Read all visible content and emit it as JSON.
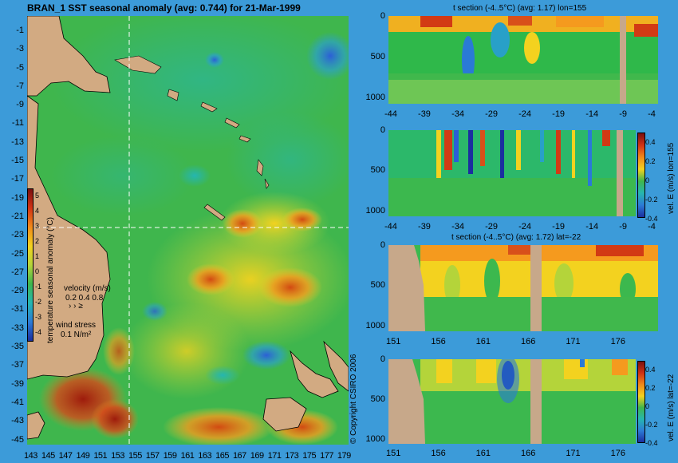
{
  "map": {
    "title": "BRAN_1 SST seasonal anomaly (avg: 0.744) for 21-Mar-1999",
    "lat_labels": [
      "-1",
      "-3",
      "-5",
      "-7",
      "-9",
      "-11",
      "-13",
      "-15",
      "-17",
      "-19",
      "-21",
      "-23",
      "-25",
      "-27",
      "-29",
      "-31",
      "-33",
      "-35",
      "-37",
      "-39",
      "-41",
      "-43",
      "-45"
    ],
    "lon_labels": [
      "143",
      "145",
      "147",
      "149",
      "151",
      "153",
      "155",
      "157",
      "159",
      "161",
      "163",
      "165",
      "167",
      "169",
      "171",
      "173",
      "175",
      "177",
      "179"
    ],
    "colorbar": {
      "ticks": [
        "5",
        "4",
        "3",
        "2",
        "1",
        "0",
        "-1",
        "-2",
        "-3",
        "-4"
      ],
      "label": "temperature seasonal anomaly (°C)"
    },
    "velocity_legend": {
      "title": "velocity (m/s)",
      "values": "0.2 0.4 0.8"
    },
    "wind_legend": {
      "title": "wind stress",
      "value": "0.1 N/m²"
    },
    "copyright": "© Copyright CSIRO 2006",
    "crosshair": {
      "lon": 155,
      "lat": -22
    },
    "colors": {
      "land": "#d2aa82",
      "sea_bg": "#34b84a"
    }
  },
  "sections": [
    {
      "title": "t section (-4..5°C) (avg: 1.17) lon=155",
      "x_labels": [
        "-44",
        "-39",
        "-34",
        "-29",
        "-24",
        "-19",
        "-14",
        "-9",
        "-4"
      ],
      "y_labels": [
        "0",
        "500",
        "1000"
      ],
      "side_label": ""
    },
    {
      "title": "",
      "x_labels": [
        "-44",
        "-39",
        "-34",
        "-29",
        "-24",
        "-19",
        "-14",
        "-9",
        "-4"
      ],
      "y_labels": [
        "0",
        "500",
        "1000"
      ],
      "side_label": "vel. E (m/s) lon=155",
      "colorbar_ticks": [
        "0.4",
        "0.2",
        "0",
        "-0.2",
        "-0.4"
      ]
    },
    {
      "title": "t section (-4..5°C) (avg: 1.72) lat=-22",
      "x_labels": [
        "151",
        "156",
        "161",
        "166",
        "171",
        "176"
      ],
      "y_labels": [
        "0",
        "500",
        "1000"
      ],
      "side_label": ""
    },
    {
      "title": "",
      "x_labels": [
        "151",
        "156",
        "161",
        "166",
        "171",
        "176"
      ],
      "y_labels": [
        "0",
        "500",
        "1000"
      ],
      "side_label": "vel. E (m/s) lat=-22",
      "colorbar_ticks": [
        "0.4",
        "0.2",
        "0",
        "-0.2",
        "-0.4"
      ]
    }
  ]
}
